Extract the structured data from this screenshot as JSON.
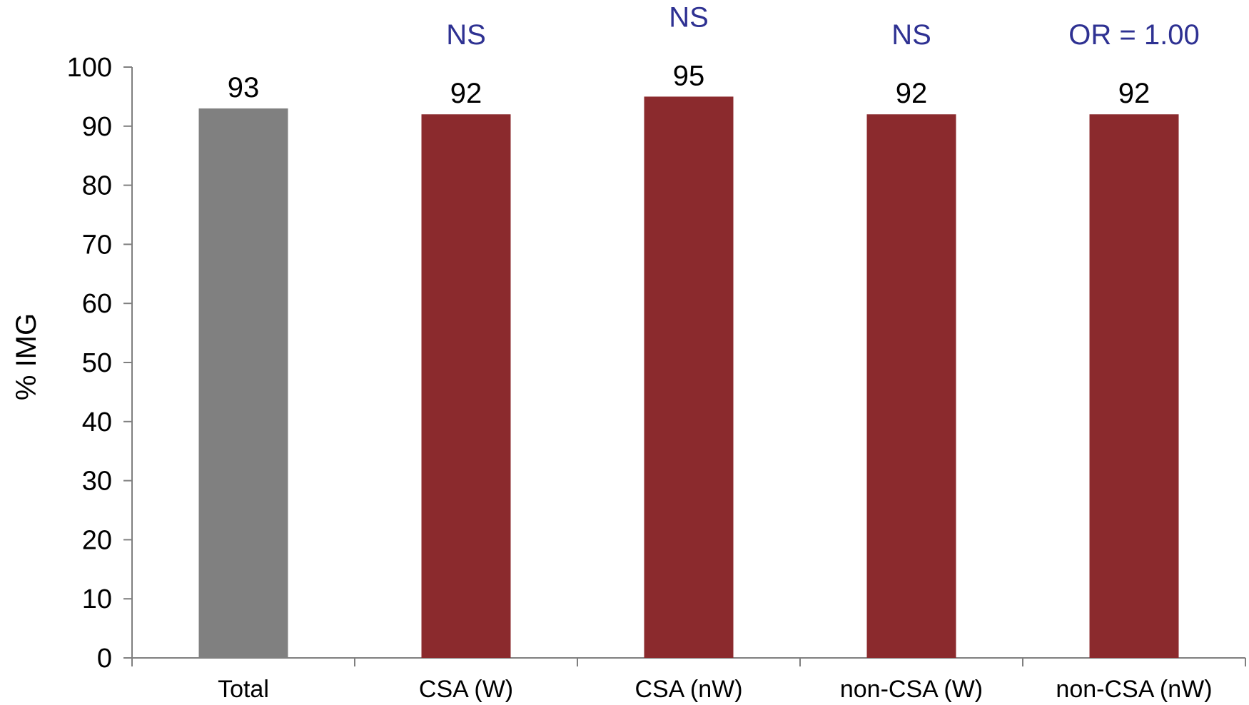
{
  "chart_data": {
    "type": "bar",
    "categories": [
      "Total",
      "CSA (W)",
      "CSA (nW)",
      "non-CSA (W)",
      "non-CSA (nW)"
    ],
    "values": [
      93,
      92,
      95,
      92,
      92
    ],
    "bar_colors": [
      "#808080",
      "#8b2a2d",
      "#8b2a2d",
      "#8b2a2d",
      "#8b2a2d"
    ],
    "annotations": [
      "",
      "NS",
      "NS",
      "NS",
      "OR = 1.00"
    ],
    "annotation_color": "#2e3192",
    "ylabel": "% IMG",
    "xlabel": "",
    "ylim": [
      0,
      100
    ],
    "yticks": [
      0,
      10,
      20,
      30,
      40,
      50,
      60,
      70,
      80,
      90,
      100
    ],
    "grid": false,
    "legend": "none"
  }
}
